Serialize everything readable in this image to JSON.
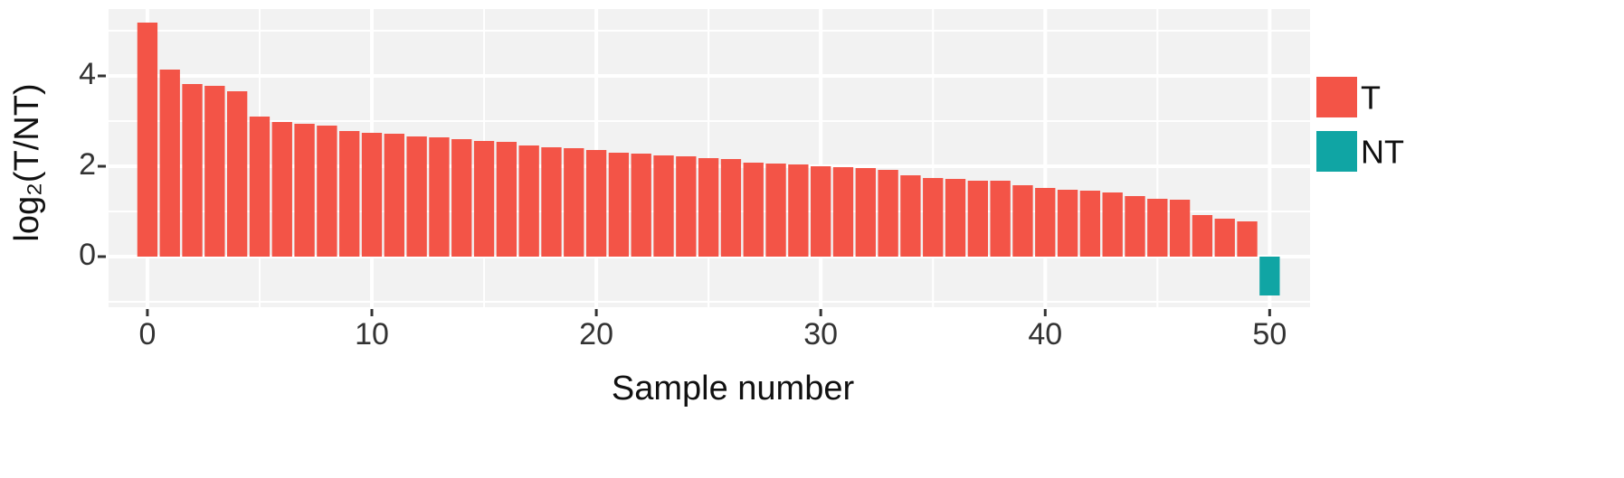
{
  "chart_data": {
    "type": "bar",
    "x_label": "Sample number",
    "y_label": "log₂(T/NT)",
    "xlim": [
      -1.73,
      51.8
    ],
    "ylim": [
      -1.12,
      5.48
    ],
    "xticks": [
      0,
      10,
      20,
      30,
      40,
      50
    ],
    "yticks": [
      0,
      2,
      4
    ],
    "xminor": [
      5,
      15,
      25,
      35,
      45
    ],
    "yminor": [
      -1,
      1,
      3,
      5
    ],
    "grid": true,
    "legend": "right",
    "series": [
      {
        "name": "T",
        "color": "#f35447",
        "x": [
          0,
          1,
          2,
          3,
          4,
          5,
          6,
          7,
          8,
          9,
          10,
          11,
          12,
          13,
          14,
          15,
          16,
          17,
          18,
          19,
          20,
          21,
          22,
          23,
          24,
          25,
          26,
          27,
          28,
          29,
          30,
          31,
          32,
          33,
          34,
          35,
          36,
          37,
          38,
          39,
          40,
          41,
          42,
          43,
          44,
          45,
          46,
          47,
          48,
          49
        ],
        "values": [
          5.18,
          4.14,
          3.82,
          3.78,
          3.66,
          3.1,
          2.98,
          2.94,
          2.9,
          2.78,
          2.74,
          2.72,
          2.66,
          2.64,
          2.6,
          2.56,
          2.54,
          2.46,
          2.42,
          2.4,
          2.36,
          2.3,
          2.28,
          2.24,
          2.22,
          2.18,
          2.16,
          2.08,
          2.06,
          2.04,
          2.0,
          1.98,
          1.96,
          1.92,
          1.8,
          1.74,
          1.72,
          1.68,
          1.68,
          1.58,
          1.52,
          1.48,
          1.46,
          1.42,
          1.34,
          1.28,
          1.26,
          0.92,
          0.84,
          0.78
        ]
      },
      {
        "name": "NT",
        "color": "#10a5a4",
        "x": [
          50
        ],
        "values": [
          -0.86
        ]
      }
    ]
  }
}
